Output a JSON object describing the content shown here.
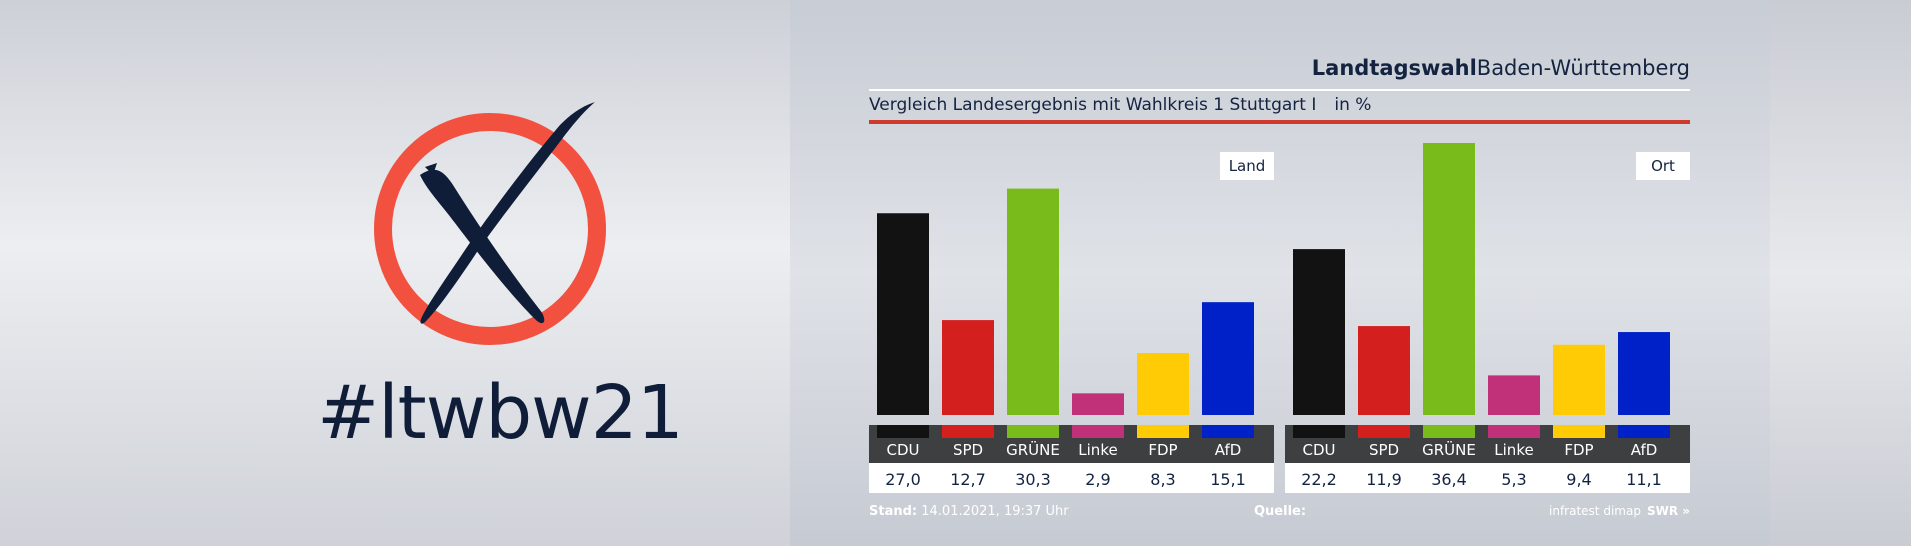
{
  "left": {
    "hashtag": "#ltwbw21"
  },
  "header": {
    "title_bold": "Landtagswahl",
    "title_regular": "Baden-Württemberg",
    "subtitle": "Vergleich Landesergebnis mit Wahlkreis 1 Stuttgart I",
    "unit": "in %"
  },
  "footer": {
    "stand_label": "Stand:",
    "stand_value": "14.01.2021, 19:37 Uhr",
    "quelle_label": "Quelle:",
    "source": "infratest dimap",
    "brand": "SWR »"
  },
  "colors": {
    "CDU": "#121212",
    "SPD": "#d41f1f",
    "GRÜNE": "#79bb1a",
    "Linke": "#c0317a",
    "FDP": "#ffcb05",
    "AfD": "#0021c8",
    "accent_red": "#d03a2c",
    "logo_circle": "#f25140",
    "navy": "#0f1d38"
  },
  "chart_data": [
    {
      "type": "bar",
      "label": "Land",
      "categories": [
        "CDU",
        "SPD",
        "GRÜNE",
        "Linke",
        "FDP",
        "AfD"
      ],
      "values_text": [
        "27,0",
        "12,7",
        "30,3",
        "2,9",
        "8,3",
        "15,1"
      ],
      "values": [
        27.0,
        12.7,
        30.3,
        2.9,
        8.3,
        15.1
      ],
      "ylim": [
        0,
        36.4
      ]
    },
    {
      "type": "bar",
      "label": "Ort",
      "categories": [
        "CDU",
        "SPD",
        "GRÜNE",
        "Linke",
        "FDP",
        "AfD"
      ],
      "values_text": [
        "22,2",
        "11,9",
        "36,4",
        "5,3",
        "9,4",
        "11,1"
      ],
      "values": [
        22.2,
        11.9,
        36.4,
        5.3,
        9.4,
        11.1
      ],
      "ylim": [
        0,
        36.4
      ]
    }
  ]
}
